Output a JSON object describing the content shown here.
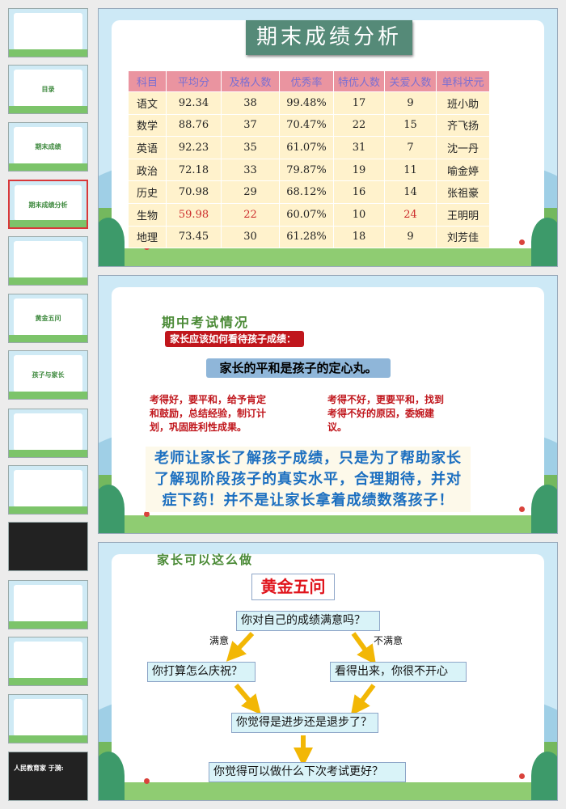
{
  "thumbnails": [
    {
      "label": ""
    },
    {
      "label": "目录"
    },
    {
      "label": "期末成绩"
    },
    {
      "label": "期末成绩分析",
      "selected": true
    },
    {
      "label": ""
    },
    {
      "label": "黄金五问"
    },
    {
      "label": "孩子与家长"
    },
    {
      "label": ""
    },
    {
      "label": ""
    },
    {
      "label": ""
    },
    {
      "label": ""
    },
    {
      "label": ""
    },
    {
      "label": ""
    },
    {
      "label": "人民教育家 于漪:"
    }
  ],
  "slide1": {
    "title": "期末成绩分析",
    "headers": [
      "科目",
      "平均分",
      "及格人数",
      "优秀率",
      "特优人数",
      "关爱人数",
      "单科状元"
    ],
    "rows": [
      [
        "语文",
        "92.34",
        "38",
        "99.48%",
        "17",
        "9",
        "班小助"
      ],
      [
        "数学",
        "88.76",
        "37",
        "70.47%",
        "22",
        "15",
        "齐飞扬"
      ],
      [
        "英语",
        "92.23",
        "35",
        "61.07%",
        "31",
        "7",
        "沈一丹"
      ],
      [
        "政治",
        "72.18",
        "33",
        "79.87%",
        "19",
        "11",
        "喻金婷"
      ],
      [
        "历史",
        "70.98",
        "29",
        "68.12%",
        "16",
        "14",
        "张祖豪"
      ],
      [
        "生物",
        "59.98",
        "22",
        "60.07%",
        "10",
        "24",
        "王明明"
      ],
      [
        "地理",
        "73.45",
        "30",
        "61.28%",
        "18",
        "9",
        "刘芳佳"
      ]
    ],
    "highlight_color": "#cc2b2b"
  },
  "slide2": {
    "title": "期中考试情况",
    "red_label": "家长应该如何看待孩子成绩：",
    "blue_box": "家长的平和是孩子的定心丸。",
    "left_para": "考得好，要平和，给予肯定和鼓励，总结经验，制订计划，巩固胜利性成果。",
    "right_para": "考得不好，更要平和，找到考得不好的原因，委婉建议。",
    "note": "老师让家长了解孩子成绩，只是为了帮助家长了解现阶段孩子的真实水平，合理期待，并对症下药！并不是让家长拿着成绩数落孩子！"
  },
  "slide3": {
    "title": "家长可以这么做",
    "heading": "黄金五问",
    "q1": "你对自己的成绩满意吗？",
    "yes": "满意",
    "no": "不满意",
    "q2_yes": "你打算怎么庆祝？",
    "q2_no": "看得出来，你很不开心",
    "q3": "你觉得是进步还是退步了？",
    "q4": "你觉得可以做什么下次考试更好？",
    "arrow_color": "#f2b705"
  }
}
